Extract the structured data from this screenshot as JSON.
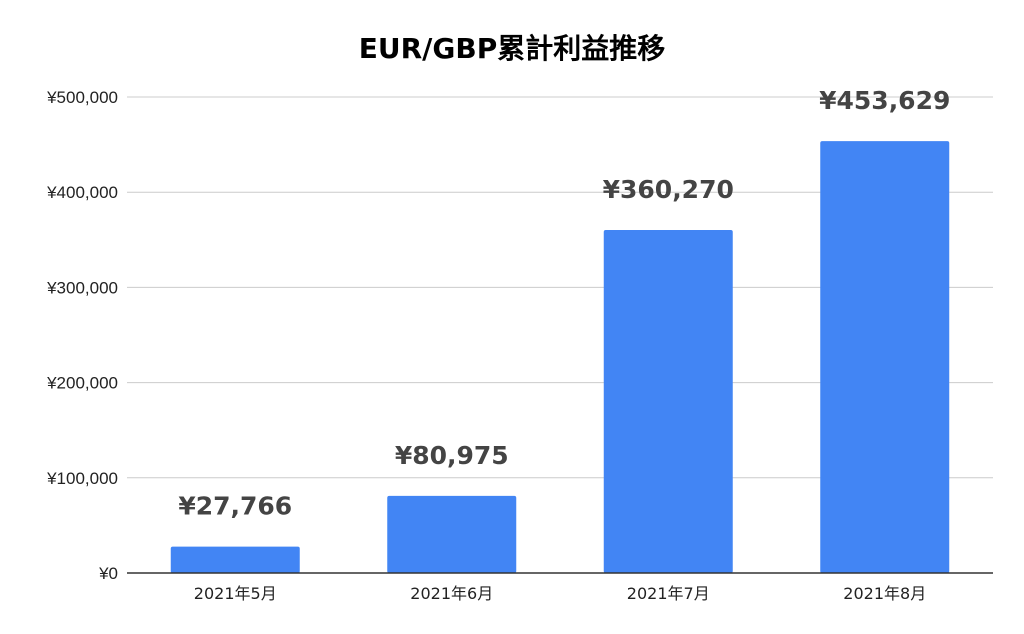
{
  "chart_data": {
    "type": "bar",
    "title": "EUR/GBP累計利益推移",
    "xlabel": "",
    "ylabel": "",
    "categories": [
      "2021年5月",
      "2021年6月",
      "2021年7月",
      "2021年8月"
    ],
    "values": [
      27766,
      80975,
      360270,
      453629
    ],
    "data_labels": [
      "¥27,766",
      "¥80,975",
      "¥360,270",
      "¥453,629"
    ],
    "ylim": [
      0,
      500000
    ],
    "yticks": [
      0,
      100000,
      200000,
      300000,
      400000,
      500000
    ],
    "ytick_labels": [
      "¥0",
      "¥100,000",
      "¥200,000",
      "¥300,000",
      "¥400,000",
      "¥500,000"
    ],
    "grid": true,
    "legend": "none",
    "colors": {
      "bar": "#4285f4",
      "grid": "#cccccc",
      "axis": "#333333",
      "data_label": "#444444"
    }
  }
}
